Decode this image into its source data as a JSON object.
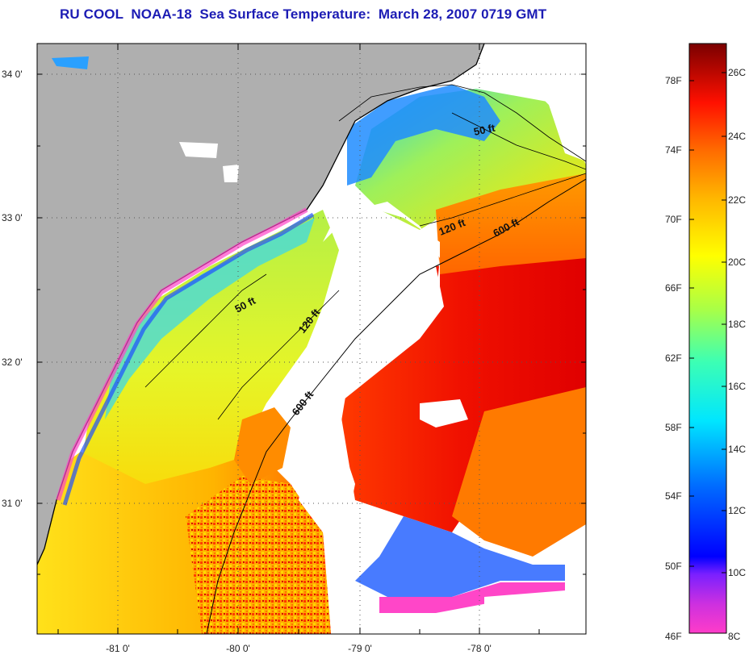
{
  "title": "RU COOL  NOAA-18  Sea Surface Temperature:  March 28, 2007 0719 GMT",
  "map": {
    "lat_ticks": [
      "34 0'",
      "33 0'",
      "32 0'",
      "31 0'"
    ],
    "lon_ticks": [
      "-81 0'",
      "-80 0'",
      "-79 0'",
      "-78 0'"
    ],
    "contour_labels": {
      "c50_north": "50 ft",
      "c120_north": "120 ft",
      "c600_north": "600 ft",
      "c50_south": "50 ft",
      "c120_south": "120 ft",
      "c600_south": "600 ft"
    },
    "colors": {
      "land": "#afafaf",
      "cloud": "#ffffff",
      "coast": "#000000"
    }
  },
  "colorbar": {
    "f_labels": [
      "78F",
      "74F",
      "70F",
      "66F",
      "62F",
      "58F",
      "54F",
      "50F",
      "46F"
    ],
    "c_labels": [
      "26C",
      "24C",
      "22C",
      "20C",
      "18C",
      "16C",
      "14C",
      "12C",
      "10C",
      "8C"
    ]
  }
}
